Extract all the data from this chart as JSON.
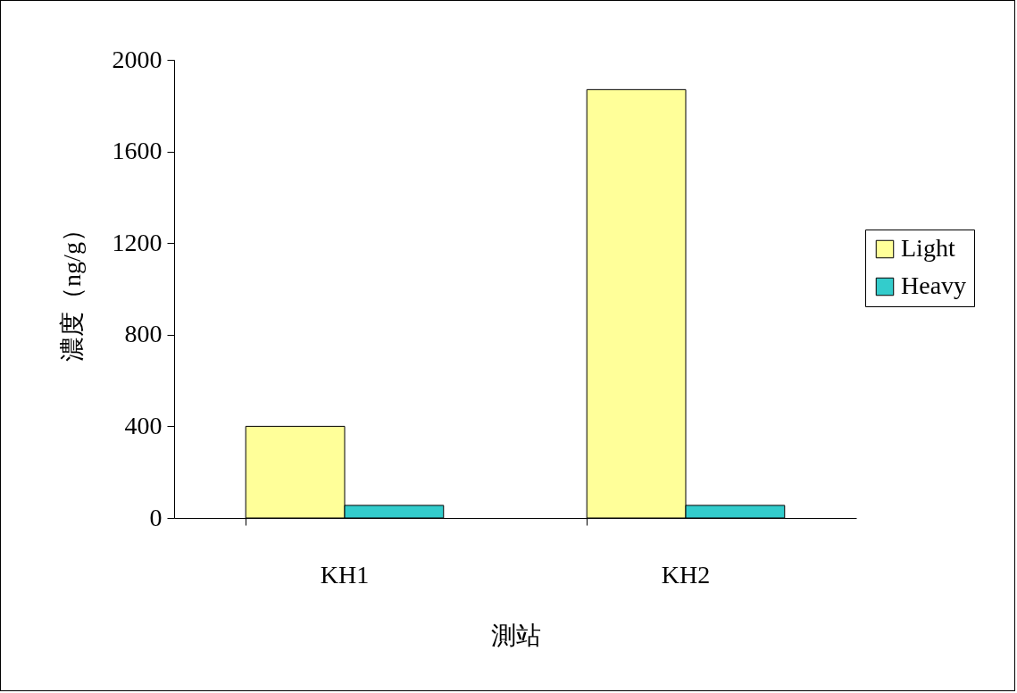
{
  "chart_data": {
    "type": "bar",
    "xlabel": "測站",
    "ylabel": "濃度（ng/g）",
    "categories": [
      "KH1",
      "KH2"
    ],
    "series": [
      {
        "name": "Light",
        "color": "#ffff99",
        "values": [
          400,
          1870
        ]
      },
      {
        "name": "Heavy",
        "color": "#33cccc",
        "values": [
          55,
          55
        ]
      }
    ],
    "ylim": [
      0,
      2000
    ],
    "yticks": [
      0,
      400,
      800,
      1200,
      1600,
      2000
    ],
    "grid": false,
    "legend": "right"
  }
}
